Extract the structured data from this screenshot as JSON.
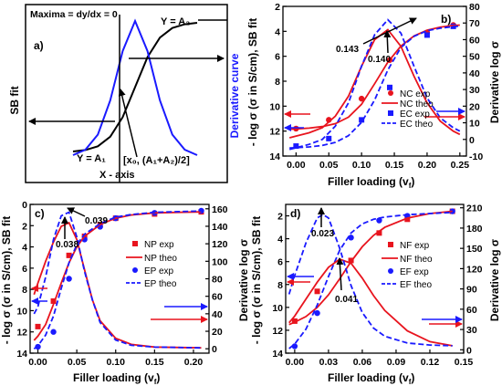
{
  "chart_data": [
    {
      "id": "a",
      "type": "line",
      "panel_label": "a)",
      "xlabel": "X - axis",
      "ylabel_left": "SB fit",
      "ylabel_right": "Derivative curve",
      "colors": {
        "left": "#000000",
        "right": "#1a1aff"
      },
      "annotations": {
        "maxima": "Maxima = dy/dx = 0",
        "top_level": "Y = A₂",
        "bottom_level": "Y = A₁",
        "midpoint": "[x₀, (A₁+A₂)/2]"
      },
      "series": [
        {
          "curve": "sigmoid",
          "x": [
            -5,
            -4,
            -3,
            -2,
            -1,
            0,
            1,
            2,
            3,
            4,
            5
          ],
          "y": [
            0.007,
            0.018,
            0.047,
            0.12,
            0.27,
            0.5,
            0.73,
            0.88,
            0.953,
            0.982,
            0.993
          ]
        },
        {
          "curve": "derivative",
          "x": [
            -5,
            -4,
            -3,
            -2,
            -1,
            0,
            1,
            2,
            3,
            4,
            5
          ],
          "y": [
            0.02,
            0.06,
            0.17,
            0.42,
            0.78,
            1.0,
            0.78,
            0.42,
            0.17,
            0.06,
            0.02
          ]
        }
      ]
    },
    {
      "id": "b",
      "type": "line",
      "panel_label": "b)",
      "xlabel": "Filler loading (v",
      "xlabel_sub": "f",
      "xlabel_tail": ")",
      "ylabel_left": "- log σ (σ in S/cm), SB fit",
      "ylabel_right": "Derivative log σ",
      "xlim": [
        -0.02,
        0.26
      ],
      "xticks": [
        0.0,
        0.05,
        0.1,
        0.15,
        0.2,
        0.25
      ],
      "xtick_labels": [
        "0.00",
        "0.05",
        "0.10",
        "0.15",
        "0.20",
        "0.25"
      ],
      "ylim_left": [
        14,
        2
      ],
      "yticks_left": [
        2,
        4,
        6,
        8,
        10,
        12,
        14
      ],
      "ylim_right": [
        -10,
        80
      ],
      "yticks_right": [
        -10,
        0,
        10,
        20,
        30,
        40,
        50,
        60,
        70,
        80
      ],
      "ytick_labels_right": [
        "-10",
        "0",
        "10",
        "20",
        "30",
        "40",
        "50",
        "60",
        "70",
        "80"
      ],
      "peaks": [
        "0.140",
        "0.143"
      ],
      "legend": [
        {
          "label": "NC exp",
          "color": "#e8141e",
          "marker": "circle",
          "line": "none"
        },
        {
          "label": "NC theo",
          "color": "#e8141e",
          "marker": "none",
          "line": "solid"
        },
        {
          "label": "EC exp",
          "color": "#1a1aff",
          "marker": "square",
          "line": "none"
        },
        {
          "label": "EC theo",
          "color": "#1a1aff",
          "marker": "none",
          "line": "dashed"
        }
      ],
      "series": [
        {
          "name": "NC exp",
          "axis": "left",
          "x": [
            0.0,
            0.05,
            0.1,
            0.143,
            0.2,
            0.24
          ],
          "y": [
            11.8,
            11.1,
            9.4,
            6.3,
            4.1,
            3.5
          ]
        },
        {
          "name": "EC exp",
          "axis": "left",
          "x": [
            0.0,
            0.05,
            0.1,
            0.143,
            0.2,
            0.24
          ],
          "y": [
            13.2,
            12.6,
            11.1,
            8.5,
            4.3,
            3.6
          ]
        },
        {
          "name": "NC theo",
          "axis": "left",
          "x": [
            -0.01,
            0.0,
            0.02,
            0.04,
            0.06,
            0.08,
            0.1,
            0.12,
            0.14,
            0.16,
            0.18,
            0.2,
            0.22,
            0.24,
            0.25
          ],
          "y": [
            11.85,
            11.83,
            11.76,
            11.64,
            11.4,
            10.88,
            9.85,
            8.2,
            6.48,
            5.18,
            4.37,
            3.91,
            3.66,
            3.53,
            3.5
          ]
        },
        {
          "name": "EC theo",
          "axis": "left",
          "x": [
            -0.01,
            0.0,
            0.02,
            0.04,
            0.06,
            0.08,
            0.1,
            0.12,
            0.14,
            0.16,
            0.18,
            0.2,
            0.22,
            0.24,
            0.25
          ],
          "y": [
            13.35,
            13.33,
            13.27,
            13.15,
            12.9,
            12.37,
            11.3,
            9.5,
            7.1,
            5.3,
            4.4,
            3.95,
            3.75,
            3.62,
            3.58
          ]
        },
        {
          "name": "NC derivative",
          "axis": "right",
          "x": [
            -0.01,
            0.0,
            0.02,
            0.04,
            0.06,
            0.08,
            0.1,
            0.12,
            0.14,
            0.16,
            0.18,
            0.2,
            0.22,
            0.24,
            0.25
          ],
          "y": [
            1,
            2,
            4,
            7,
            14,
            26,
            44,
            60,
            66,
            56,
            38,
            22,
            11,
            5,
            3
          ]
        },
        {
          "name": "EC derivative",
          "axis": "right",
          "x": [
            -0.01,
            0.0,
            0.02,
            0.04,
            0.06,
            0.08,
            0.1,
            0.12,
            0.14,
            0.16,
            0.18,
            0.2,
            0.22,
            0.24,
            0.25
          ],
          "y": [
            -6,
            -5,
            -3,
            0,
            8,
            22,
            44,
            63,
            72,
            64,
            44,
            25,
            13,
            7,
            5
          ]
        }
      ]
    },
    {
      "id": "c",
      "type": "line",
      "panel_label": "c)",
      "xlabel": "Filler loading (v",
      "xlabel_sub": "f",
      "xlabel_tail": ")",
      "ylabel_left": "- log σ (σ in S/cm), SB fit",
      "ylabel_right": "Derivative log σ",
      "xlim": [
        -0.01,
        0.22
      ],
      "xticks": [
        0.0,
        0.05,
        0.1,
        0.15,
        0.2
      ],
      "xtick_labels": [
        "0.00",
        "0.05",
        "0.10",
        "0.15",
        "0.20"
      ],
      "ylim_left": [
        14,
        0
      ],
      "yticks_left": [
        0,
        2,
        4,
        6,
        8,
        10,
        12,
        14
      ],
      "ylim_right": [
        -5,
        165
      ],
      "yticks_right": [
        0,
        20,
        40,
        60,
        80,
        100,
        120,
        140,
        160
      ],
      "ytick_labels_right": [
        "0",
        "20",
        "40",
        "60",
        "80",
        "100",
        "120",
        "140",
        "160"
      ],
      "peaks": [
        "0.038",
        "0.039"
      ],
      "legend": [
        {
          "label": "NP exp",
          "color": "#e8141e",
          "marker": "square",
          "line": "none"
        },
        {
          "label": "NP theo",
          "color": "#e8141e",
          "marker": "none",
          "line": "solid"
        },
        {
          "label": "EP exp",
          "color": "#1a1aff",
          "marker": "circle",
          "line": "none"
        },
        {
          "label": "EP theo",
          "color": "#1a1aff",
          "marker": "none",
          "line": "dashed"
        }
      ],
      "series": [
        {
          "name": "NP exp",
          "axis": "left",
          "x": [
            0.0,
            0.02,
            0.04,
            0.06,
            0.08,
            0.1,
            0.15,
            0.21
          ],
          "y": [
            11.5,
            9.1,
            4.8,
            3.0,
            1.9,
            1.3,
            0.9,
            0.7
          ]
        },
        {
          "name": "EP exp",
          "axis": "left",
          "x": [
            0.0,
            0.02,
            0.04,
            0.06,
            0.08,
            0.1,
            0.15,
            0.21
          ],
          "y": [
            13.4,
            12.0,
            7.0,
            3.3,
            2.1,
            1.3,
            0.8,
            0.6
          ]
        },
        {
          "name": "NP theo",
          "axis": "left",
          "x": [
            -0.005,
            0.0,
            0.01,
            0.02,
            0.03,
            0.04,
            0.05,
            0.06,
            0.08,
            0.1,
            0.12,
            0.15,
            0.18,
            0.21
          ],
          "y": [
            12.8,
            12.4,
            11.3,
            9.4,
            7.4,
            5.5,
            4.0,
            3.0,
            1.9,
            1.3,
            1.0,
            0.8,
            0.75,
            0.7
          ]
        },
        {
          "name": "EP theo",
          "axis": "left",
          "x": [
            -0.005,
            0.0,
            0.01,
            0.02,
            0.03,
            0.04,
            0.05,
            0.06,
            0.08,
            0.1,
            0.12,
            0.15,
            0.18,
            0.21
          ],
          "y": [
            13.6,
            13.3,
            12.3,
            10.5,
            7.9,
            5.5,
            3.8,
            2.8,
            1.8,
            1.2,
            0.95,
            0.75,
            0.68,
            0.62
          ]
        },
        {
          "name": "NP derivative",
          "axis": "right",
          "x": [
            -0.005,
            0.0,
            0.01,
            0.02,
            0.03,
            0.04,
            0.05,
            0.06,
            0.07,
            0.08,
            0.1,
            0.12,
            0.15,
            0.21
          ],
          "y": [
            62,
            75,
            100,
            122,
            140,
            144,
            125,
            90,
            56,
            32,
            12,
            5,
            2,
            1
          ]
        },
        {
          "name": "EP derivative",
          "axis": "right",
          "x": [
            -0.005,
            0.0,
            0.01,
            0.02,
            0.03,
            0.04,
            0.05,
            0.06,
            0.07,
            0.08,
            0.1,
            0.12,
            0.15,
            0.21
          ],
          "y": [
            40,
            48,
            82,
            125,
            152,
            156,
            128,
            88,
            56,
            30,
            10,
            4,
            2,
            1
          ]
        }
      ]
    },
    {
      "id": "d",
      "type": "line",
      "panel_label": "d)",
      "xlabel": "Filler loading (v",
      "xlabel_sub": "f",
      "xlabel_tail": ")",
      "ylabel_left": "- log σ (σ in S/cm), SB fit",
      "ylabel_right": "Derivative log σ",
      "xlim": [
        -0.008,
        0.15
      ],
      "xticks": [
        0.0,
        0.03,
        0.06,
        0.09,
        0.12,
        0.15
      ],
      "xtick_labels": [
        "0.00",
        "0.03",
        "0.06",
        "0.09",
        "0.12",
        "0.15"
      ],
      "ylim_left": [
        14,
        1
      ],
      "yticks_left": [
        2,
        4,
        6,
        8,
        10,
        12,
        14
      ],
      "ylim_right": [
        -5,
        215
      ],
      "yticks_right": [
        0,
        30,
        60,
        90,
        120,
        150,
        180,
        210
      ],
      "ytick_labels_right": [
        "0",
        "30",
        "60",
        "90",
        "120",
        "150",
        "180",
        "210"
      ],
      "peaks": [
        "0.023",
        "0.041"
      ],
      "legend": [
        {
          "label": "NF exp",
          "color": "#e8141e",
          "marker": "square",
          "line": "none"
        },
        {
          "label": "NF theo",
          "color": "#e8141e",
          "marker": "none",
          "line": "solid"
        },
        {
          "label": "EF exp",
          "color": "#1a1aff",
          "marker": "circle",
          "line": "none"
        },
        {
          "label": "EF theo",
          "color": "#1a1aff",
          "marker": "none",
          "line": "dashed"
        }
      ],
      "series": [
        {
          "name": "NF exp",
          "axis": "left",
          "x": [
            0.0,
            0.02,
            0.05,
            0.075,
            0.1,
            0.14
          ],
          "y": [
            11.2,
            8.6,
            5.9,
            3.5,
            2.3,
            1.6
          ]
        },
        {
          "name": "EF exp",
          "axis": "left",
          "x": [
            0.0,
            0.02,
            0.05,
            0.075,
            0.1,
            0.14
          ],
          "y": [
            13.4,
            10.5,
            3.9,
            2.4,
            2.0,
            1.6
          ]
        },
        {
          "name": "NF theo",
          "axis": "left",
          "x": [
            -0.005,
            0.0,
            0.01,
            0.02,
            0.03,
            0.04,
            0.05,
            0.06,
            0.07,
            0.08,
            0.1,
            0.12,
            0.14
          ],
          "y": [
            11.5,
            11.3,
            10.8,
            10.0,
            8.9,
            7.5,
            6.0,
            4.7,
            3.7,
            3.0,
            2.2,
            1.8,
            1.6
          ]
        },
        {
          "name": "EF theo",
          "axis": "left",
          "x": [
            -0.005,
            0.0,
            0.01,
            0.02,
            0.03,
            0.04,
            0.05,
            0.06,
            0.07,
            0.08,
            0.1,
            0.12,
            0.14
          ],
          "y": [
            13.6,
            13.2,
            11.9,
            9.8,
            7.3,
            5.0,
            3.5,
            2.7,
            2.3,
            2.1,
            1.9,
            1.8,
            1.7
          ]
        },
        {
          "name": "NF derivative",
          "axis": "right",
          "x": [
            -0.005,
            0.0,
            0.01,
            0.02,
            0.03,
            0.04,
            0.05,
            0.06,
            0.07,
            0.08,
            0.1,
            0.12,
            0.14
          ],
          "y": [
            40,
            50,
            75,
            100,
            122,
            134,
            128,
            106,
            80,
            58,
            28,
            12,
            6
          ]
        },
        {
          "name": "EF derivative",
          "axis": "right",
          "x": [
            -0.005,
            0.0,
            0.01,
            0.02,
            0.025,
            0.03,
            0.04,
            0.05,
            0.06,
            0.07,
            0.08,
            0.1,
            0.12,
            0.14
          ],
          "y": [
            82,
            110,
            158,
            195,
            200,
            195,
            150,
            95,
            55,
            32,
            20,
            10,
            7,
            6
          ]
        }
      ]
    }
  ]
}
